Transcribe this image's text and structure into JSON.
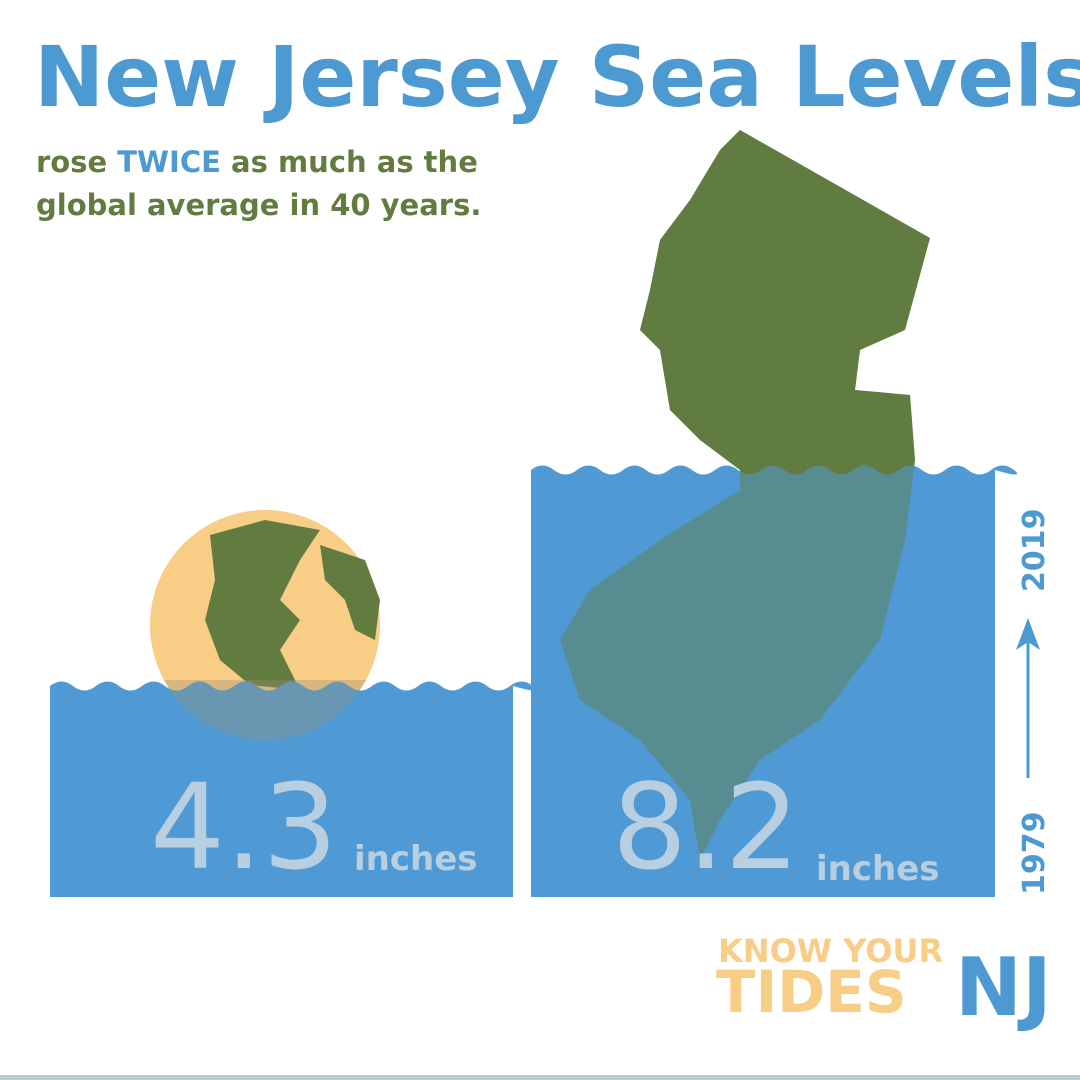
{
  "title": "New Jersey Sea Levels",
  "subtitle": {
    "lead": "rose",
    "emphasis": "TWICE",
    "rest": "as much as the",
    "line2": "global average in 40 years."
  },
  "global": {
    "value": "4.3",
    "unit": "inches"
  },
  "new_jersey": {
    "value": "8.2",
    "unit": "inches"
  },
  "timeline": {
    "start": "1979",
    "end": "2019"
  },
  "logo": {
    "line1": "KNOW YOUR",
    "line2": "TIDES",
    "mark": "NJ"
  }
}
